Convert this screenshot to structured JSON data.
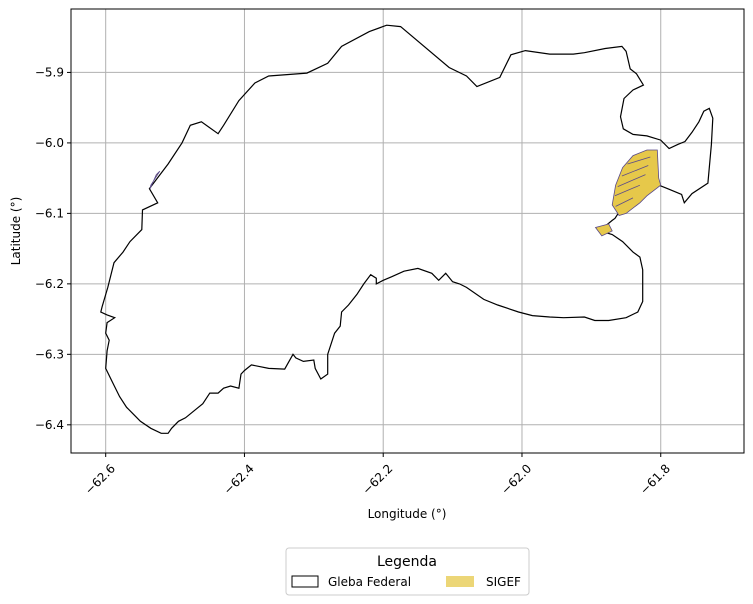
{
  "chart_data": {
    "type": "map",
    "xlabel": "Longitude (°)",
    "ylabel": "Latitude (°)",
    "xlim": [
      -62.65,
      -61.68
    ],
    "ylim": [
      -6.44,
      -5.81
    ],
    "grid": true,
    "x_ticks": [
      -62.6,
      -62.4,
      -62.2,
      -62.0,
      -61.8
    ],
    "x_tick_labels": [
      "−62.6",
      "−62.4",
      "−62.2",
      "−62.0",
      "−61.8"
    ],
    "y_ticks": [
      -5.9,
      -6.0,
      -6.1,
      -6.2,
      -6.3,
      -6.4
    ],
    "y_tick_labels": [
      "−5.9",
      "−6.0",
      "−6.1",
      "−6.2",
      "−6.3",
      "−6.4"
    ],
    "legend": {
      "title": "Legenda",
      "placement": "bottom-center",
      "entries": [
        {
          "label": "Gleba Federal",
          "color": "#ffffff",
          "edge": "#000000"
        },
        {
          "label": "SIGEF",
          "color": "#e6c84a",
          "edge": "#e6c84a"
        }
      ]
    },
    "series": [
      {
        "name": "Gleba Federal",
        "kind": "polygon",
        "color": "#000000",
        "points": [
          [
            -62.605,
            -6.232
          ],
          [
            -62.597,
            -6.205
          ],
          [
            -62.588,
            -6.17
          ],
          [
            -62.575,
            -6.155
          ],
          [
            -62.565,
            -6.14
          ],
          [
            -62.548,
            -6.123
          ],
          [
            -62.547,
            -6.095
          ],
          [
            -62.525,
            -6.085
          ],
          [
            -62.537,
            -6.065
          ],
          [
            -62.51,
            -6.03
          ],
          [
            -62.49,
            -6.0
          ],
          [
            -62.478,
            -5.975
          ],
          [
            -62.462,
            -5.97
          ],
          [
            -62.438,
            -5.987
          ],
          [
            -62.43,
            -5.975
          ],
          [
            -62.408,
            -5.94
          ],
          [
            -62.385,
            -5.915
          ],
          [
            -62.365,
            -5.905
          ],
          [
            -62.31,
            -5.901
          ],
          [
            -62.28,
            -5.887
          ],
          [
            -62.26,
            -5.863
          ],
          [
            -62.22,
            -5.842
          ],
          [
            -62.195,
            -5.833
          ],
          [
            -62.175,
            -5.835
          ],
          [
            -62.105,
            -5.893
          ],
          [
            -62.08,
            -5.905
          ],
          [
            -62.065,
            -5.92
          ],
          [
            -62.032,
            -5.907
          ],
          [
            -62.016,
            -5.875
          ],
          [
            -61.995,
            -5.869
          ],
          [
            -61.96,
            -5.874
          ],
          [
            -61.926,
            -5.874
          ],
          [
            -61.91,
            -5.872
          ],
          [
            -61.88,
            -5.866
          ],
          [
            -61.856,
            -5.863
          ],
          [
            -61.85,
            -5.87
          ],
          [
            -61.844,
            -5.895
          ],
          [
            -61.835,
            -5.902
          ],
          [
            -61.825,
            -5.918
          ],
          [
            -61.84,
            -5.925
          ],
          [
            -61.853,
            -5.937
          ],
          [
            -61.858,
            -5.963
          ],
          [
            -61.854,
            -5.98
          ],
          [
            -61.84,
            -5.988
          ],
          [
            -61.82,
            -5.99
          ],
          [
            -61.8,
            -5.996
          ],
          [
            -61.788,
            -6.008
          ],
          [
            -61.775,
            -6.002
          ],
          [
            -61.765,
            -5.998
          ],
          [
            -61.755,
            -5.985
          ],
          [
            -61.745,
            -5.97
          ],
          [
            -61.738,
            -5.955
          ],
          [
            -61.73,
            -5.951
          ],
          [
            -61.725,
            -5.965
          ],
          [
            -61.727,
            -6.002
          ],
          [
            -61.732,
            -6.057
          ],
          [
            -61.755,
            -6.072
          ],
          [
            -61.766,
            -6.085
          ],
          [
            -61.77,
            -6.073
          ],
          [
            -61.79,
            -6.065
          ],
          [
            -61.81,
            -6.057
          ],
          [
            -61.82,
            -6.062
          ],
          [
            -61.86,
            -6.098
          ],
          [
            -61.866,
            -6.107
          ],
          [
            -61.87,
            -6.11
          ],
          [
            -61.88,
            -6.118
          ],
          [
            -61.88,
            -6.127
          ],
          [
            -61.87,
            -6.13
          ],
          [
            -61.855,
            -6.14
          ],
          [
            -61.84,
            -6.155
          ],
          [
            -61.83,
            -6.162
          ],
          [
            -61.826,
            -6.18
          ],
          [
            -61.826,
            -6.225
          ],
          [
            -61.833,
            -6.24
          ],
          [
            -61.85,
            -6.248
          ],
          [
            -61.875,
            -6.252
          ],
          [
            -61.895,
            -6.252
          ],
          [
            -61.91,
            -6.247
          ],
          [
            -61.94,
            -6.248
          ],
          [
            -61.96,
            -6.247
          ],
          [
            -61.985,
            -6.245
          ],
          [
            -62.005,
            -6.24
          ],
          [
            -62.035,
            -6.23
          ],
          [
            -62.055,
            -6.222
          ],
          [
            -62.08,
            -6.205
          ],
          [
            -62.09,
            -6.2
          ],
          [
            -62.1,
            -6.197
          ],
          [
            -62.11,
            -6.185
          ],
          [
            -62.12,
            -6.195
          ],
          [
            -62.13,
            -6.185
          ],
          [
            -62.15,
            -6.178
          ],
          [
            -62.17,
            -6.182
          ],
          [
            -62.188,
            -6.19
          ],
          [
            -62.2,
            -6.195
          ],
          [
            -62.21,
            -6.2
          ],
          [
            -62.21,
            -6.192
          ],
          [
            -62.218,
            -6.187
          ],
          [
            -62.228,
            -6.2
          ],
          [
            -62.238,
            -6.215
          ],
          [
            -62.25,
            -6.23
          ],
          [
            -62.26,
            -6.24
          ],
          [
            -62.262,
            -6.26
          ],
          [
            -62.27,
            -6.27
          ],
          [
            -62.28,
            -6.3
          ],
          [
            -62.28,
            -6.328
          ],
          [
            -62.29,
            -6.335
          ],
          [
            -62.298,
            -6.32
          ],
          [
            -62.3,
            -6.308
          ],
          [
            -62.315,
            -6.31
          ],
          [
            -62.326,
            -6.305
          ],
          [
            -62.33,
            -6.3
          ],
          [
            -62.342,
            -6.321
          ],
          [
            -62.365,
            -6.32
          ],
          [
            -62.39,
            -6.315
          ],
          [
            -62.4,
            -6.323
          ],
          [
            -62.405,
            -6.328
          ],
          [
            -62.408,
            -6.348
          ],
          [
            -62.42,
            -6.345
          ],
          [
            -62.43,
            -6.348
          ],
          [
            -62.438,
            -6.355
          ],
          [
            -62.45,
            -6.355
          ],
          [
            -62.46,
            -6.37
          ],
          [
            -62.47,
            -6.378
          ],
          [
            -62.485,
            -6.39
          ],
          [
            -62.495,
            -6.395
          ],
          [
            -62.505,
            -6.405
          ],
          [
            -62.51,
            -6.412
          ],
          [
            -62.52,
            -6.412
          ],
          [
            -62.535,
            -6.405
          ],
          [
            -62.55,
            -6.395
          ],
          [
            -62.56,
            -6.385
          ],
          [
            -62.57,
            -6.375
          ],
          [
            -62.58,
            -6.36
          ],
          [
            -62.59,
            -6.34
          ],
          [
            -62.6,
            -6.32
          ],
          [
            -62.598,
            -6.295
          ],
          [
            -62.595,
            -6.28
          ],
          [
            -62.6,
            -6.27
          ],
          [
            -62.598,
            -6.255
          ],
          [
            -62.587,
            -6.248
          ],
          [
            -62.598,
            -6.244
          ],
          [
            -62.607,
            -6.24
          ]
        ]
      },
      {
        "name": "SIGEF",
        "kind": "polygon",
        "color": "#e6c84a",
        "points": [
          [
            -61.86,
            -6.103
          ],
          [
            -61.87,
            -6.088
          ],
          [
            -61.865,
            -6.06
          ],
          [
            -61.855,
            -6.035
          ],
          [
            -61.84,
            -6.018
          ],
          [
            -61.82,
            -6.01
          ],
          [
            -61.805,
            -6.01
          ],
          [
            -61.803,
            -6.05
          ],
          [
            -61.8,
            -6.06
          ],
          [
            -61.82,
            -6.075
          ],
          [
            -61.83,
            -6.085
          ],
          [
            -61.85,
            -6.1
          ]
        ]
      },
      {
        "name": "SIGEF",
        "kind": "polygon",
        "color": "#e6c84a",
        "points": [
          [
            -61.894,
            -6.12
          ],
          [
            -61.885,
            -6.132
          ],
          [
            -61.87,
            -6.125
          ],
          [
            -61.875,
            -6.115
          ]
        ]
      },
      {
        "name": "SIGEF",
        "kind": "polygon",
        "color": "#e6c84a",
        "points": [
          [
            -62.535,
            -6.06
          ],
          [
            -62.522,
            -6.04
          ],
          [
            -62.527,
            -6.045
          ],
          [
            -62.536,
            -6.065
          ]
        ]
      }
    ]
  }
}
